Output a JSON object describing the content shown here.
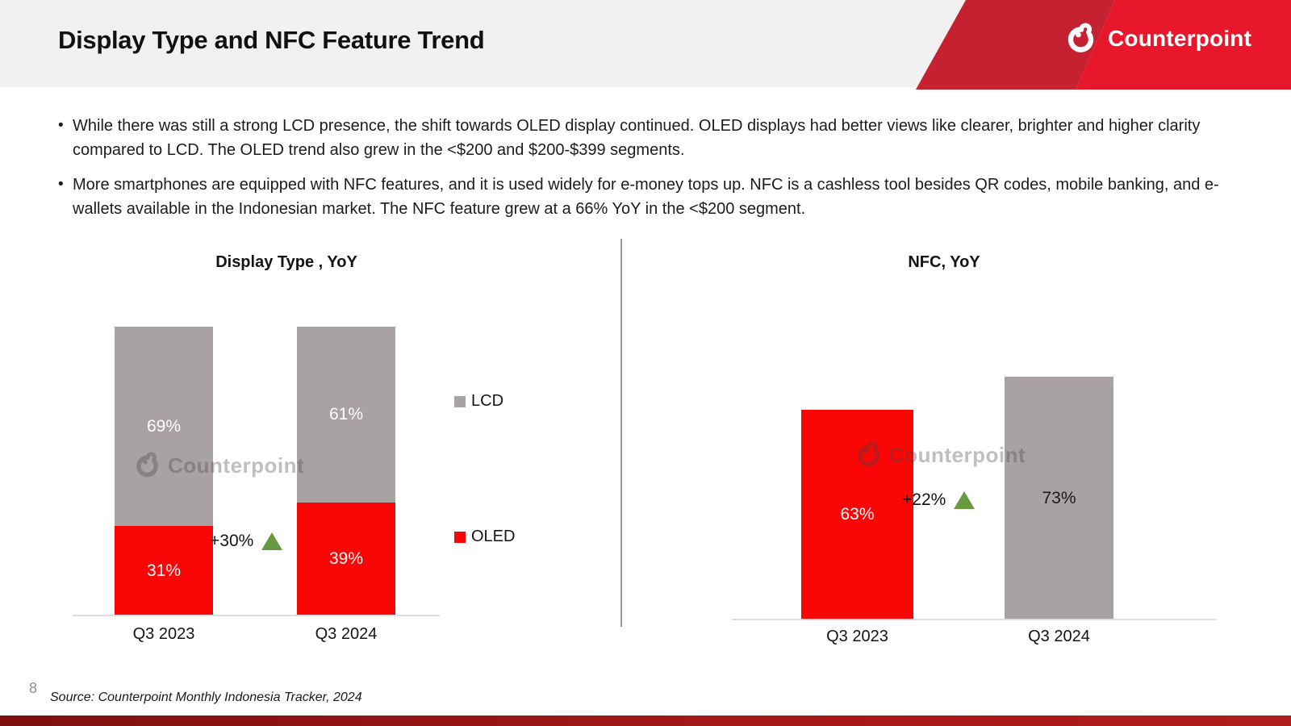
{
  "header": {
    "title": "Display Type and NFC Feature Trend",
    "brand": "Counterpoint"
  },
  "bullets": [
    "While there was still a strong LCD presence, the shift towards OLED display continued. OLED displays had better views like clearer, brighter and higher clarity compared to LCD. The OLED trend also grew in the <$200 and $200-$399 segments.",
    "More smartphones are equipped with NFC features, and it is used widely for e-money tops up. NFC is a cashless tool besides QR codes, mobile banking, and e-wallets available in the Indonesian market. The NFC feature grew at a 66% YoY in the <$200 segment."
  ],
  "chart_data": [
    {
      "type": "bar",
      "subtype": "stacked",
      "title": "Display Type , YoY",
      "categories": [
        "Q3 2023",
        "Q3 2024"
      ],
      "series": [
        {
          "name": "OLED",
          "values": [
            31,
            39
          ],
          "color": "#fa0606",
          "label_color": "#ffffff"
        },
        {
          "name": "LCD",
          "values": [
            69,
            61
          ],
          "color": "#a8a2a2",
          "label_color": "#ffffff"
        }
      ],
      "unit": "%",
      "ylim": [
        0,
        100
      ],
      "legend_position": "right",
      "annotation": {
        "text": "+30%",
        "symbol": "up-triangle"
      }
    },
    {
      "type": "bar",
      "title": "NFC, YoY",
      "categories": [
        "Q3 2023",
        "Q3 2024"
      ],
      "values": [
        63,
        73
      ],
      "bar_colors": [
        "#fa0606",
        "#a8a2a2"
      ],
      "label_colors": [
        "#ffffff",
        "#1a1a1a"
      ],
      "unit": "%",
      "ylim": [
        0,
        100
      ],
      "annotation": {
        "text": "+22%",
        "symbol": "up-triangle"
      }
    }
  ],
  "watermark": {
    "text": "Counterpoint"
  },
  "footer": {
    "page_number": "8",
    "source": "Source: Counterpoint Monthly Indonesia Tracker, 2024"
  },
  "colors": {
    "banner_dark_red": "#c52130",
    "banner_bright_red": "#e8172b",
    "growth_triangle_green": "#689a41",
    "footer_bar_red": "#a31717"
  }
}
